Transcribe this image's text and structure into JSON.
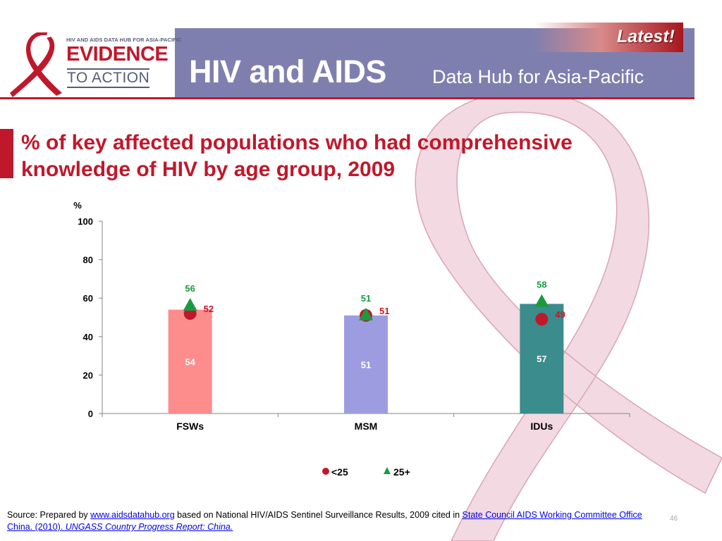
{
  "header": {
    "logo_small": "HIV AND AIDS DATA HUB FOR ASIA-PACIFIC",
    "logo_evidence": "EVIDENCE",
    "logo_to_action": "TO ACTION",
    "title_main": "HIV and AIDS",
    "title_sub": "Data Hub for Asia-Pacific",
    "latest": "Latest!"
  },
  "colors": {
    "brand_red": "#c0182b",
    "header_purple": "#7f7faf",
    "marker_green": "#1a9a3f",
    "marker_red": "#c0182b"
  },
  "chart_data": {
    "type": "bar",
    "title": "% of key affected populations who had comprehensive knowledge of HIV by age group, 2009",
    "ylabel": "%",
    "ylim": [
      0,
      100
    ],
    "yticks": [
      0,
      20,
      40,
      60,
      80,
      100
    ],
    "categories": [
      "FSWs",
      "MSM",
      "IDUs"
    ],
    "bar_colors": [
      "#fd8c8c",
      "#9e9ce0",
      "#3b8c8c"
    ],
    "values": [
      54,
      51,
      57
    ],
    "series": [
      {
        "name": "<25",
        "marker": "circle",
        "color": "#c0182b",
        "values": [
          52,
          51,
          49
        ]
      },
      {
        "name": "25+",
        "marker": "triangle",
        "color": "#1a9a3f",
        "values": [
          56,
          51,
          58
        ]
      }
    ],
    "legend_position": "bottom",
    "grid": false
  },
  "source": {
    "prefix": "Source: Prepared by ",
    "link1": "www.aidsdatahub.org",
    "middle": "  based on National HIV/AIDS Sentinel Surveillance Results, 2009 cited in ",
    "link2": "State Council AIDS Working Committee Office China. (2010). ",
    "link3": "UNGASS Country Progress Report: China."
  },
  "page_number": "46"
}
